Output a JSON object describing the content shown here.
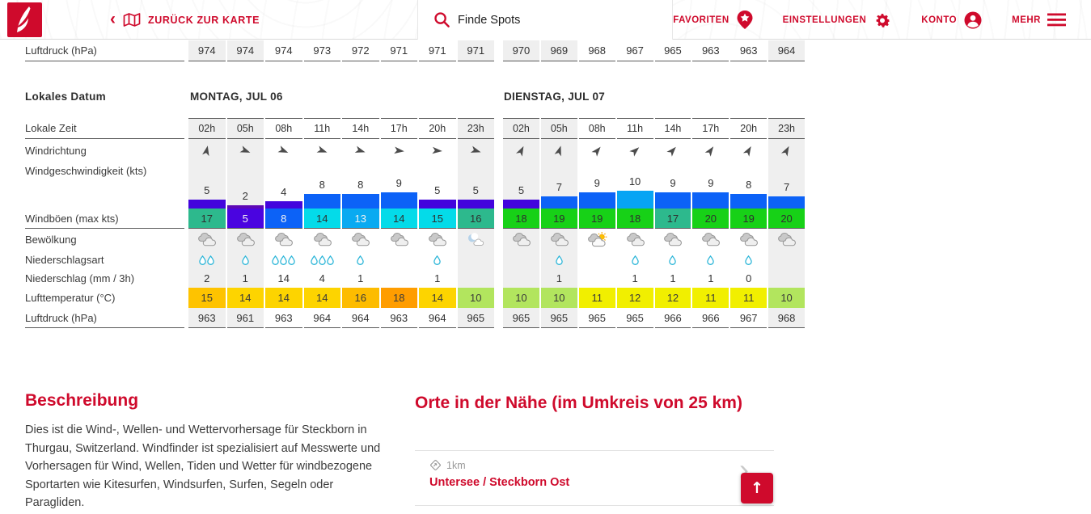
{
  "header": {
    "back_label": "ZURÜCK ZUR KARTE",
    "search_placeholder": "Finde Spots",
    "nav_favorites": "FAVORITEN",
    "nav_settings": "EINSTELLUNGEN",
    "nav_account": "KONTO",
    "nav_more": "MEHR"
  },
  "colors": {
    "brand_red": "#cf0a2c",
    "night_column_bg": "#efefef",
    "table_border": "#5a5a5a"
  },
  "partial_row": {
    "label": "Luftdruck (hPa)",
    "day1_values": [
      "974",
      "974",
      "974",
      "973",
      "972",
      "971",
      "971",
      "971"
    ],
    "day2_values": [
      "970",
      "969",
      "968",
      "967",
      "965",
      "963",
      "963",
      "964"
    ],
    "night_flags": [
      true,
      true,
      false,
      false,
      false,
      false,
      false,
      true
    ]
  },
  "forecast": {
    "date_label": "Lokales Datum",
    "labels": {
      "time": "Lokale Zeit",
      "direction": "Windrichtung",
      "speed": "Windgeschwindigkeit (kts)",
      "gusts": "Windböen (max kts)",
      "clouds": "Bewölkung",
      "precip_type": "Niederschlagsart",
      "precip": "Niederschlag (mm / 3h)",
      "temperature": "Lufttemperatur (°C)",
      "pressure": "Luftdruck (hPa)"
    },
    "days": [
      {
        "title": "MONTAG, JUL 06",
        "times": [
          "02h",
          "05h",
          "08h",
          "11h",
          "14h",
          "17h",
          "20h",
          "23h"
        ],
        "night": [
          true,
          true,
          false,
          false,
          false,
          false,
          false,
          true
        ],
        "wind_direction_deg": [
          12,
          112,
          113,
          110,
          107,
          97,
          95,
          107
        ],
        "wind_speed_kts": [
          5,
          2,
          4,
          8,
          8,
          9,
          5,
          5
        ],
        "wind_speed_colors": [
          "#4304dd",
          "#5d08b5",
          "#4304dd",
          "#0c62f7",
          "#0c62f7",
          "#0c62f7",
          "#4304dd",
          "#4304dd"
        ],
        "wind_gusts_kts": [
          17,
          5,
          8,
          14,
          13,
          14,
          15,
          16
        ],
        "gust_colors": [
          "#2db98d",
          "#4a04e0",
          "#0c62f7",
          "#04dbe9",
          "#09aaf1",
          "#04dbe9",
          "#04dbe9",
          "#2db98d"
        ],
        "gust_light_text": [
          false,
          true,
          true,
          false,
          true,
          false,
          false,
          false
        ],
        "clouds": [
          "cloudy",
          "cloudy",
          "cloudy",
          "cloudy",
          "cloudy",
          "cloudy",
          "cloudy",
          "night-cloudy"
        ],
        "precip_drops": [
          2,
          1,
          3,
          3,
          1,
          0,
          1,
          0
        ],
        "precip_mm": [
          "2",
          "1",
          "14",
          "4",
          "1",
          "",
          "1",
          ""
        ],
        "temperature_c": [
          15,
          14,
          14,
          14,
          16,
          18,
          14,
          10
        ],
        "temperature_colors": [
          "#fec300",
          "#fdd400",
          "#fdd400",
          "#fdd400",
          "#fdbc00",
          "#ff9d00",
          "#fdd400",
          "#b2e55e"
        ],
        "pressure_hpa": [
          "963",
          "961",
          "963",
          "964",
          "964",
          "963",
          "964",
          "965"
        ]
      },
      {
        "title": "DIENSTAG, JUL 07",
        "times": [
          "02h",
          "05h",
          "08h",
          "11h",
          "14h",
          "17h",
          "20h",
          "23h"
        ],
        "night": [
          true,
          true,
          false,
          false,
          false,
          false,
          false,
          true
        ],
        "wind_direction_deg": [
          27,
          18,
          40,
          48,
          42,
          35,
          30,
          28
        ],
        "wind_speed_kts": [
          5,
          7,
          9,
          10,
          9,
          9,
          8,
          7
        ],
        "wind_speed_colors": [
          "#4304dd",
          "#0c62f7",
          "#0c62f7",
          "#07a4f4",
          "#0c62f7",
          "#0c62f7",
          "#0c62f7",
          "#0c62f7"
        ],
        "wind_gusts_kts": [
          18,
          19,
          19,
          18,
          17,
          20,
          19,
          20
        ],
        "gust_colors": [
          "#17d117",
          "#17d117",
          "#17d117",
          "#17d117",
          "#2db98d",
          "#17d117",
          "#17d117",
          "#17d117"
        ],
        "gust_light_text": [
          false,
          false,
          false,
          false,
          false,
          false,
          false,
          false
        ],
        "clouds": [
          "cloudy",
          "cloudy",
          "partly-sunny",
          "cloudy",
          "cloudy",
          "cloudy",
          "cloudy",
          "cloudy"
        ],
        "precip_drops": [
          0,
          1,
          0,
          1,
          1,
          1,
          1,
          0
        ],
        "precip_mm": [
          "",
          "1",
          "",
          "1",
          "1",
          "1",
          "0",
          ""
        ],
        "temperature_c": [
          10,
          10,
          11,
          12,
          12,
          11,
          11,
          10
        ],
        "temperature_colors": [
          "#b2e55e",
          "#b2e55e",
          "#f1ef00",
          "#f1ef00",
          "#f1ef00",
          "#f1ef00",
          "#f1ef00",
          "#b2e55e"
        ],
        "pressure_hpa": [
          "965",
          "965",
          "965",
          "965",
          "966",
          "966",
          "967",
          "968"
        ]
      }
    ]
  },
  "description": {
    "title": "Beschreibung",
    "text": "Dies ist die Wind-, Wellen- und Wettervorhersage für Steckborn in Thurgau, Switzerland. Windfinder ist spezialisiert auf Messwerte und Vorhersagen für Wind, Wellen, Tiden und Wetter für windbezogene Sportarten wie Kitesurfen, Windsurfen, Surfen, Segeln oder Paragliden."
  },
  "nearby": {
    "title": "Orte in der Nähe (im Umkreis von 25 km)",
    "items": [
      {
        "distance": "1km",
        "name": "Untersee / Steckborn Ost"
      }
    ]
  },
  "scroll_top_glyph": "↑"
}
